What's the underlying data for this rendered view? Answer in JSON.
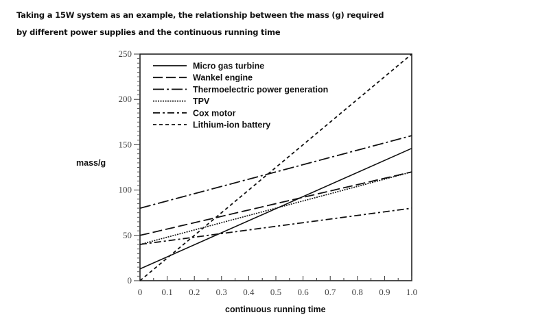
{
  "title_line1": "Taking a 15W system as an example, the relationship between the mass (g) required",
  "title_line2": "by different power supplies and the continuous running time",
  "chart_data": {
    "type": "line",
    "title": "Taking a 15W system as an example, the relationship between the mass (g) required by different power supplies and the continuous running time",
    "xlabel": "continuous running time",
    "ylabel": "mass/g",
    "xlim": [
      0,
      1.0
    ],
    "ylim": [
      0,
      250
    ],
    "x_ticks": [
      "0",
      "0.1",
      "0.2",
      "0.3",
      "0.4",
      "0.5",
      "0.6",
      "0.7",
      "0.8",
      "0.9",
      "1.0"
    ],
    "y_ticks": [
      "0",
      "50",
      "100",
      "150",
      "200",
      "250"
    ],
    "grid": false,
    "legend_position": "upper left (inside)",
    "x": [
      0,
      1.0
    ],
    "series": [
      {
        "name": "Micro gas turbine",
        "style": "solid",
        "values": [
          13,
          146
        ]
      },
      {
        "name": "Wankel engine",
        "style": "long-dash",
        "values": [
          50,
          120
        ]
      },
      {
        "name": "Thermoelectric power generation",
        "style": "dash-dot",
        "values": [
          80,
          160
        ]
      },
      {
        "name": "TPV",
        "style": "dotted",
        "values": [
          40,
          120
        ]
      },
      {
        "name": "Cox motor",
        "style": "dash-dot-short",
        "values": [
          40,
          80
        ]
      },
      {
        "name": "Lithium-ion battery",
        "style": "short-dash",
        "values": [
          0,
          250
        ]
      }
    ]
  }
}
